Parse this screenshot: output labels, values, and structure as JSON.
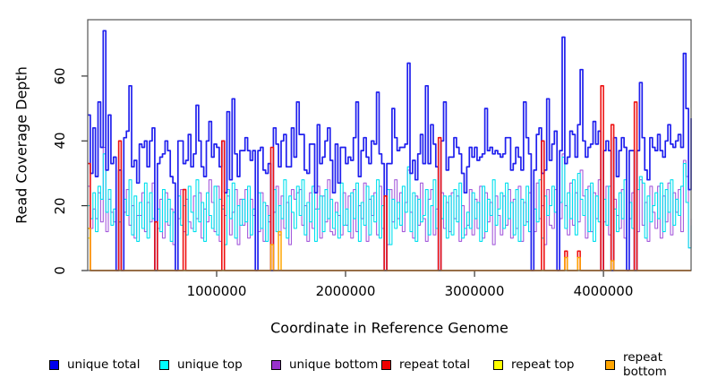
{
  "figure": {
    "ylabel": "Read Coverage Depth",
    "xlabel": "Coordinate in Reference Genome",
    "y_tick_labels": [
      "0",
      "20",
      "40",
      "60"
    ],
    "x_tick_labels": [
      "1000000",
      "2000000",
      "3000000",
      "4000000"
    ],
    "background_color": "#ffffff",
    "frame_color": "#555555",
    "tick_color": "#333333"
  },
  "legend": {
    "items": [
      {
        "label": "unique total",
        "color": "#0000EE"
      },
      {
        "label": "unique top",
        "color": "#00FFFF"
      },
      {
        "label": "unique bottom",
        "color": "#9932CC"
      },
      {
        "label": "repeat total",
        "color": "#EE0000"
      },
      {
        "label": "repeat top",
        "color": "#FFFF00"
      },
      {
        "label": "repeat bottom",
        "color": "#FFA500"
      }
    ]
  },
  "chart_data": {
    "type": "line",
    "line_shape": "step",
    "title": "",
    "xlabel": "Coordinate in Reference Genome",
    "ylabel": "Read Coverage Depth",
    "xlim": [
      0,
      4680000
    ],
    "ylim": [
      0,
      77.4
    ],
    "x_ticks": [
      1000000,
      2000000,
      3000000,
      4000000
    ],
    "y_ticks": [
      0,
      20,
      40,
      60
    ],
    "grid": false,
    "legend_position": "bottom",
    "bin_size": 20000,
    "n_points": 235,
    "series": [
      {
        "name": "repeat top",
        "color": "#F0E000",
        "width": 1.2,
        "sparse": {
          "0": 10
        }
      },
      {
        "name": "unique bottom",
        "color": "#A55CDC",
        "width": 1.1,
        "values": [
          26,
          13,
          19,
          16,
          24,
          15,
          38,
          12,
          22,
          18,
          15,
          0,
          15,
          0,
          18,
          25,
          14,
          20,
          10,
          17,
          17,
          24,
          12,
          21,
          15,
          27,
          0,
          13,
          22,
          10,
          24,
          14,
          19,
          8,
          0,
          16,
          25,
          12,
          22,
          15,
          13,
          23,
          16,
          24,
          10,
          19,
          15,
          28,
          21,
          12,
          26,
          9,
          20,
          17,
          23,
          11,
          18,
          25,
          8,
          22,
          14,
          25,
          10,
          22,
          17,
          0,
          12,
          24,
          9,
          20,
          15,
          0,
          18,
          26,
          11,
          23,
          13,
          21,
          8,
          25,
          22,
          24,
          25,
          14,
          20,
          9,
          24,
          13,
          19,
          26,
          10,
          23,
          15,
          28,
          12,
          11,
          21,
          17,
          11,
          24,
          14,
          23,
          10,
          25,
          12,
          20,
          16,
          27,
          9,
          22,
          17,
          24,
          11,
          26,
          13,
          0,
          8,
          25,
          15,
          28,
          16,
          24,
          12,
          21,
          31,
          18,
          10,
          23,
          14,
          27,
          16,
          9,
          22,
          25,
          11,
          19,
          0,
          24,
          13,
          21,
          12,
          24,
          16,
          23,
          9,
          20,
          11,
          14,
          25,
          11,
          22,
          13,
          26,
          10,
          24,
          15,
          21,
          8,
          23,
          17,
          11,
          23,
          14,
          25,
          10,
          22,
          13,
          26,
          9,
          21,
          15,
          24,
          0,
          12,
          27,
          16,
          20,
          8,
          25,
          14,
          13,
          25,
          0,
          16,
          36,
          20,
          11,
          27,
          14,
          24,
          15,
          31,
          23,
          10,
          26,
          12,
          24,
          16,
          28,
          0,
          15,
          26,
          11,
          0,
          22,
          17,
          13,
          25,
          10,
          0,
          16,
          24,
          0,
          12,
          28,
          14,
          21,
          9,
          26,
          18,
          13,
          26,
          10,
          23,
          15,
          27,
          11,
          24,
          18,
          25,
          12,
          34,
          29,
          7,
          16
        ]
      },
      {
        "name": "unique top",
        "color": "#00E0EE",
        "width": 1.1,
        "values": [
          20,
          16,
          24,
          12,
          26,
          22,
          36,
          18,
          25,
          14,
          19,
          0,
          15,
          0,
          22,
          17,
          28,
          11,
          23,
          9,
          21,
          13,
          27,
          10,
          24,
          16,
          0,
          19,
          12,
          25,
          15,
          22,
          9,
          18,
          0,
          23,
          14,
          20,
          11,
          26,
          18,
          12,
          28,
          15,
          21,
          9,
          24,
          17,
          13,
          26,
          11,
          22,
          19,
          8,
          25,
          16,
          27,
          10,
          20,
          14,
          22,
          15,
          26,
          11,
          19,
          0,
          24,
          13,
          21,
          9,
          17,
          0,
          25,
          12,
          20,
          16,
          28,
          10,
          23,
          18,
          13,
          26,
          17,
          28,
          11,
          21,
          15,
          26,
          9,
          19,
          23,
          12,
          25,
          16,
          22,
          13,
          18,
          10,
          27,
          14,
          19,
          12,
          24,
          16,
          27,
          9,
          21,
          14,
          26,
          11,
          23,
          15,
          28,
          10,
          20,
          0,
          25,
          8,
          22,
          13,
          21,
          14,
          26,
          18,
          32,
          12,
          24,
          9,
          22,
          15,
          17,
          25,
          11,
          20,
          28,
          13,
          0,
          16,
          23,
          10,
          23,
          11,
          25,
          15,
          27,
          10,
          13,
          18,
          13,
          24,
          16,
          21,
          9,
          26,
          12,
          22,
          17,
          28,
          14,
          19,
          24,
          13,
          27,
          16,
          21,
          11,
          25,
          9,
          22,
          14,
          26,
          12,
          0,
          19,
          15,
          28,
          10,
          23,
          17,
          20,
          26,
          18,
          0,
          21,
          35,
          13,
          24,
          16,
          28,
          11,
          30,
          22,
          17,
          25,
          12,
          27,
          9,
          23,
          15,
          0,
          22,
          14,
          26,
          0,
          19,
          12,
          24,
          16,
          28,
          0,
          21,
          13,
          0,
          25,
          29,
          27,
          10,
          23,
          15,
          20,
          24,
          16,
          27,
          12,
          25,
          18,
          28,
          14,
          22,
          17,
          26,
          33,
          21,
          7,
          14
        ]
      },
      {
        "name": "unique total",
        "color": "#2020EE",
        "width": 1.7,
        "values": [
          48,
          30,
          44,
          29,
          52,
          38,
          74,
          31,
          48,
          33,
          35,
          0,
          31,
          0,
          41,
          43,
          57,
          32,
          34,
          27,
          39,
          38,
          40,
          32,
          40,
          44,
          0,
          33,
          35,
          36,
          40,
          37,
          29,
          27,
          0,
          40,
          40,
          33,
          34,
          42,
          32,
          36,
          51,
          40,
          32,
          29,
          40,
          46,
          35,
          39,
          38,
          32,
          40,
          24,
          49,
          28,
          53,
          36,
          29,
          37,
          37,
          41,
          37,
          34,
          37,
          0,
          37,
          38,
          31,
          30,
          33,
          0,
          44,
          39,
          32,
          40,
          42,
          32,
          32,
          44,
          35,
          52,
          42,
          42,
          31,
          30,
          39,
          39,
          24,
          45,
          33,
          35,
          40,
          44,
          34,
          24,
          39,
          27,
          38,
          38,
          33,
          35,
          34,
          41,
          52,
          29,
          37,
          41,
          35,
          33,
          40,
          39,
          55,
          36,
          33,
          0,
          33,
          33,
          50,
          41,
          37,
          38,
          38,
          39,
          64,
          30,
          34,
          28,
          36,
          42,
          33,
          57,
          33,
          45,
          39,
          32,
          0,
          40,
          52,
          31,
          35,
          35,
          41,
          38,
          36,
          30,
          24,
          32,
          38,
          35,
          38,
          34,
          35,
          36,
          50,
          37,
          38,
          36,
          37,
          36,
          35,
          36,
          41,
          41,
          31,
          33,
          38,
          35,
          31,
          52,
          41,
          36,
          0,
          31,
          42,
          44,
          30,
          31,
          53,
          34,
          39,
          43,
          0,
          37,
          72,
          33,
          35,
          43,
          42,
          35,
          45,
          62,
          40,
          35,
          38,
          39,
          46,
          39,
          43,
          0,
          37,
          40,
          37,
          0,
          41,
          29,
          37,
          41,
          38,
          0,
          37,
          37,
          0,
          37,
          58,
          41,
          31,
          28,
          41,
          38,
          37,
          42,
          37,
          35,
          40,
          45,
          39,
          38,
          40,
          42,
          38,
          67,
          50,
          25,
          47
        ]
      },
      {
        "name": "repeat total",
        "color": "#EE1111",
        "width": 1.6,
        "sparse": {
          "0": 33,
          "12": 40,
          "26": 15,
          "37": 25,
          "52": 40,
          "71": 38,
          "115": 23,
          "136": 41,
          "176": 40,
          "185": 6,
          "190": 6,
          "199": 57,
          "203": 45,
          "212": 52
        }
      },
      {
        "name": "repeat bottom",
        "color": "#FFA500",
        "width": 1.5,
        "sparse": {
          "0": 13,
          "71": 8,
          "74": 12,
          "185": 4,
          "190": 4,
          "203": 3
        }
      }
    ]
  }
}
